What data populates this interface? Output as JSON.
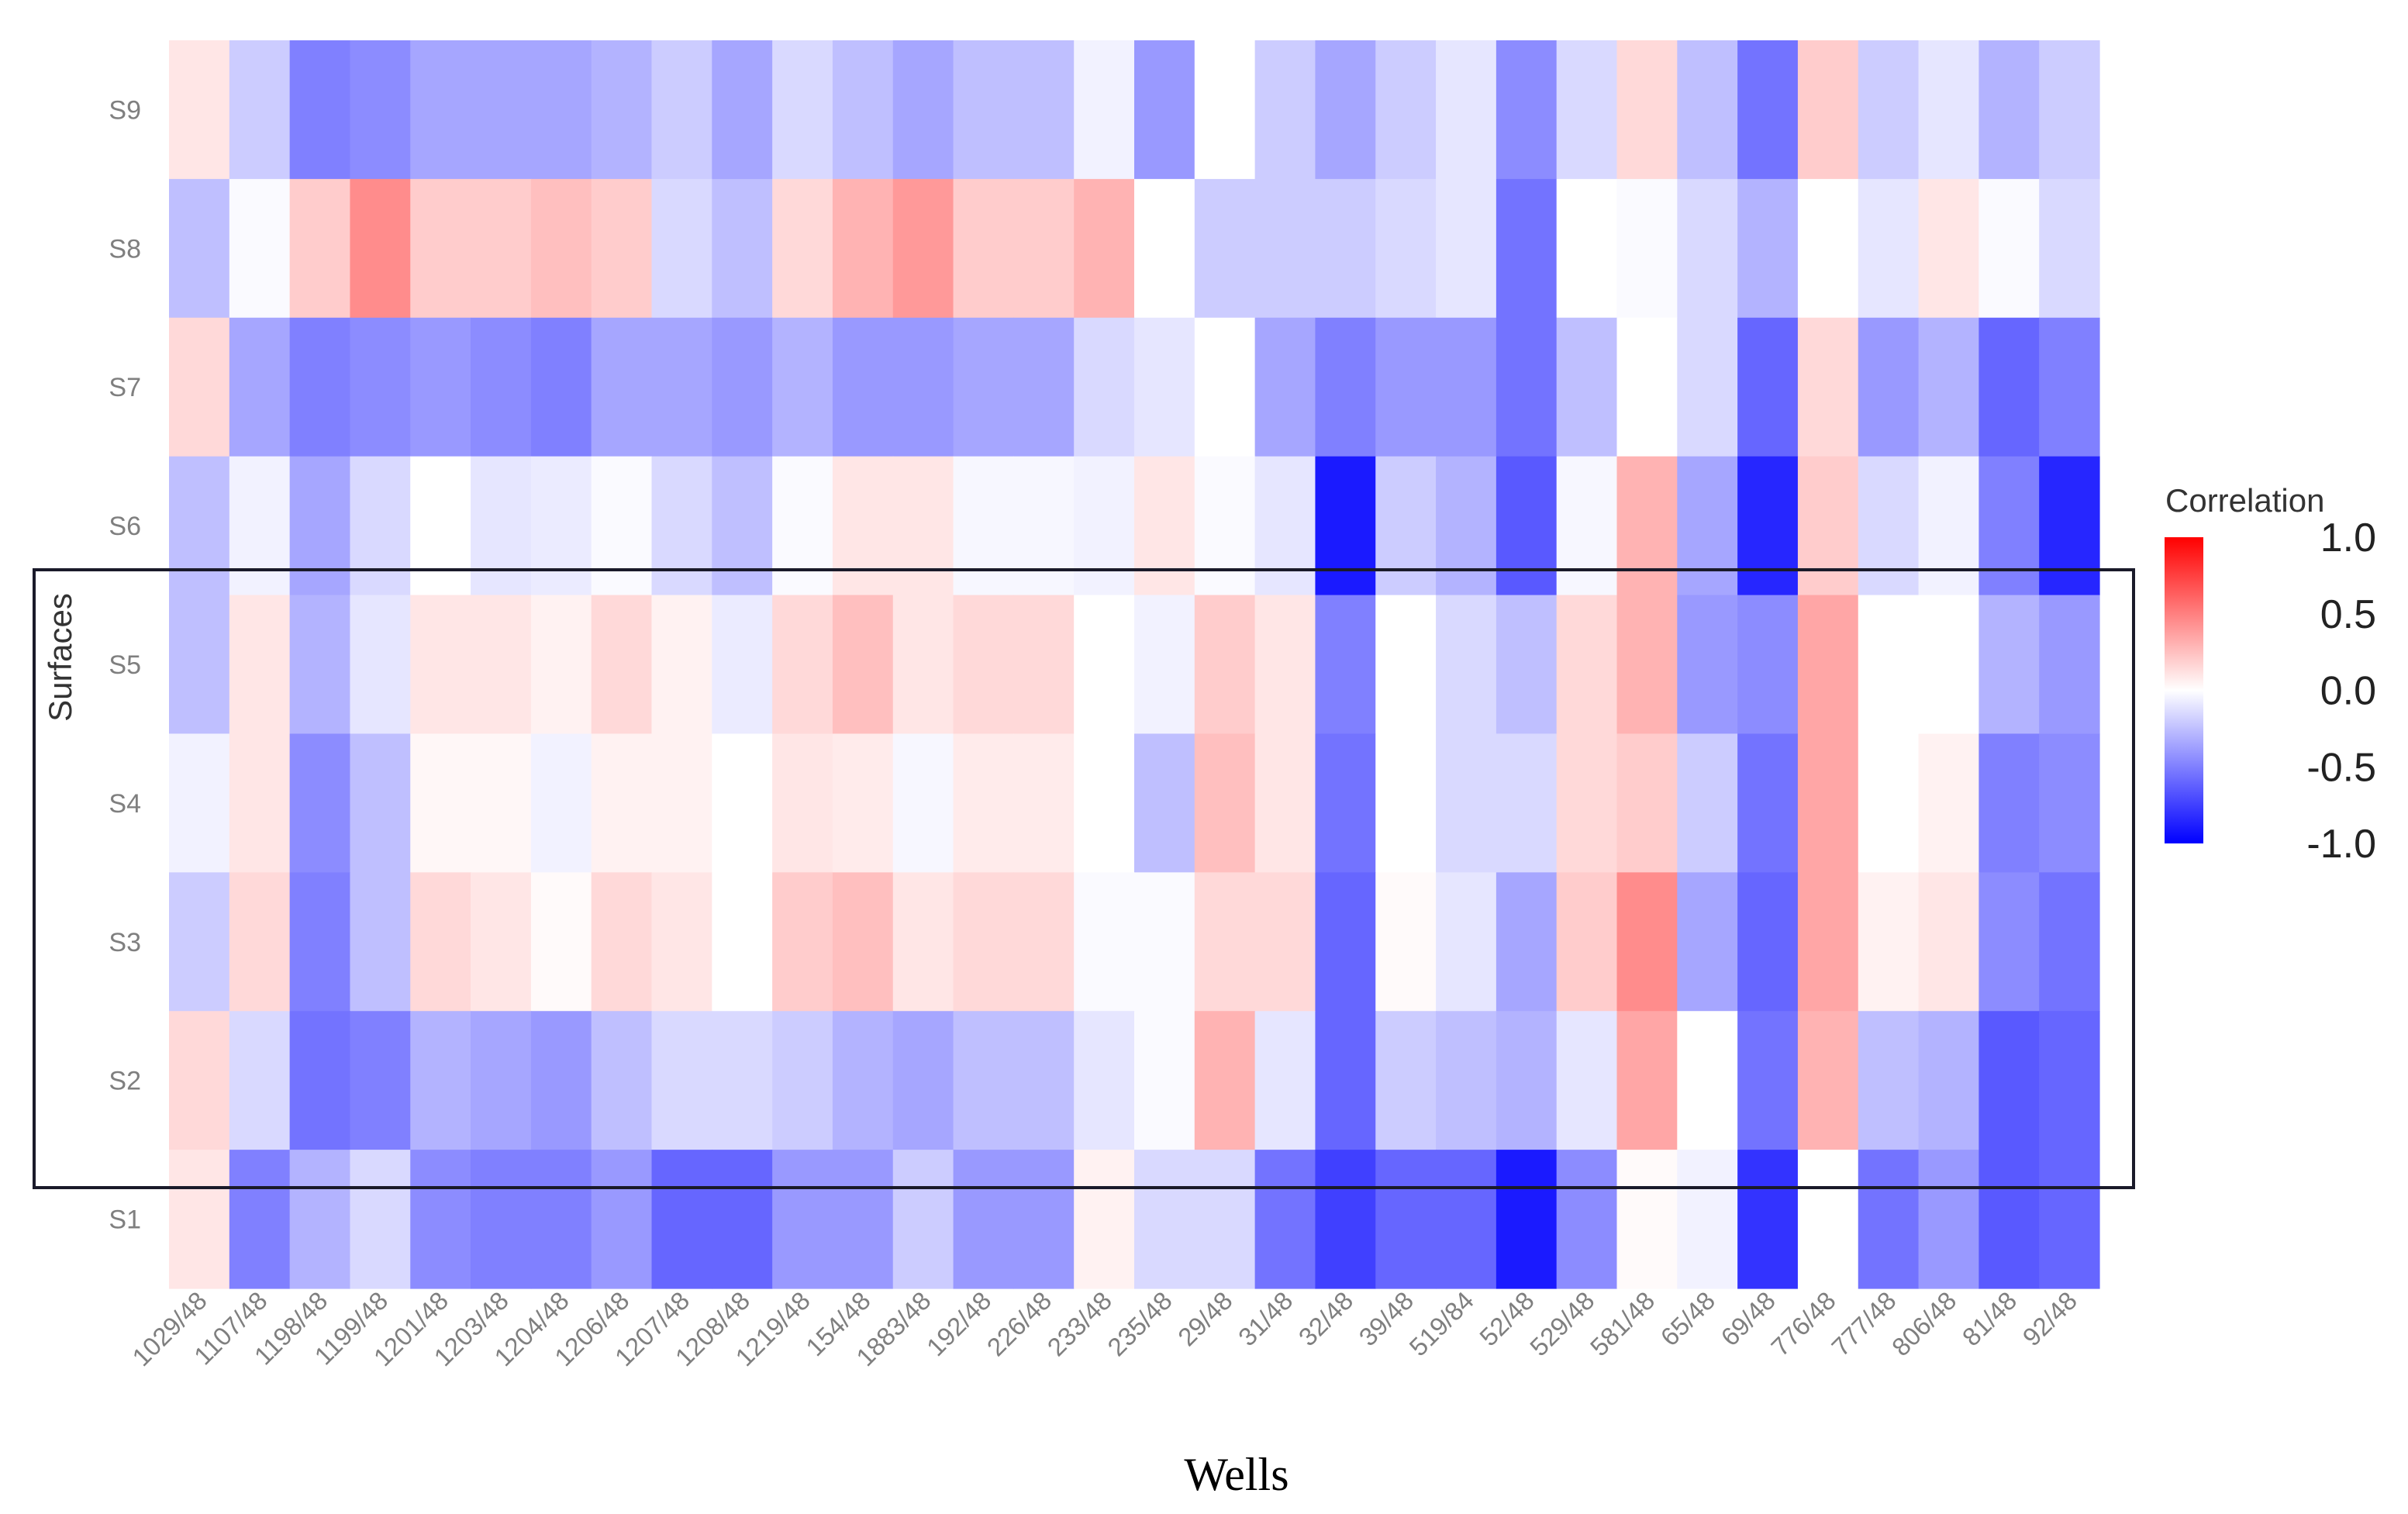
{
  "chart_data": {
    "type": "heatmap",
    "title": "",
    "xlabel": "Wells",
    "ylabel": "Surfaces",
    "x": [
      "1029/48",
      "1107/48",
      "1198/48",
      "1199/48",
      "1201/48",
      "1203/48",
      "1204/48",
      "1206/48",
      "1207/48",
      "1208/48",
      "1219/48",
      "154/48",
      "1883/48",
      "192/48",
      "226/48",
      "233/48",
      "235/48",
      "29/48",
      "31/48",
      "32/48",
      "39/48",
      "519/84",
      "52/48",
      "529/48",
      "581/48",
      "65/48",
      "69/48",
      "776/48",
      "777/48",
      "806/48",
      "81/48",
      "92/48"
    ],
    "y": [
      "S9",
      "S8",
      "S7",
      "S6",
      "S5",
      "S4",
      "S3",
      "S2",
      "S1"
    ],
    "values": [
      [
        0.1,
        -0.2,
        -0.5,
        -0.45,
        -0.35,
        -0.35,
        -0.35,
        -0.3,
        -0.2,
        -0.35,
        -0.15,
        -0.25,
        -0.35,
        -0.25,
        -0.25,
        -0.05,
        -0.4,
        0.0,
        -0.2,
        -0.35,
        -0.2,
        -0.1,
        -0.45,
        -0.15,
        0.15,
        -0.25,
        -0.55,
        0.2,
        -0.2,
        -0.1,
        -0.3,
        -0.2
      ],
      [
        -0.25,
        -0.02,
        0.2,
        0.45,
        0.2,
        0.2,
        0.25,
        0.2,
        -0.15,
        -0.25,
        0.15,
        0.3,
        0.4,
        0.2,
        0.2,
        0.3,
        0.0,
        -0.2,
        -0.2,
        -0.2,
        -0.15,
        -0.1,
        -0.55,
        0.0,
        -0.02,
        -0.15,
        -0.3,
        0.0,
        -0.1,
        0.1,
        -0.02,
        -0.15
      ],
      [
        0.15,
        -0.35,
        -0.5,
        -0.45,
        -0.4,
        -0.45,
        -0.5,
        -0.35,
        -0.35,
        -0.4,
        -0.3,
        -0.4,
        -0.4,
        -0.35,
        -0.35,
        -0.15,
        -0.1,
        0.0,
        -0.35,
        -0.5,
        -0.4,
        -0.4,
        -0.55,
        -0.25,
        0.0,
        -0.15,
        -0.6,
        0.15,
        -0.4,
        -0.3,
        -0.6,
        -0.5
      ],
      [
        -0.25,
        -0.05,
        -0.35,
        -0.15,
        0.0,
        -0.1,
        -0.08,
        -0.02,
        -0.15,
        -0.25,
        -0.02,
        0.1,
        0.1,
        -0.03,
        -0.03,
        -0.05,
        0.1,
        -0.02,
        -0.1,
        -0.9,
        -0.2,
        -0.3,
        -0.65,
        -0.03,
        0.3,
        -0.35,
        -0.85,
        0.2,
        -0.15,
        -0.05,
        -0.5,
        -0.85
      ],
      [
        -0.25,
        0.1,
        -0.3,
        -0.1,
        0.1,
        0.1,
        0.05,
        0.15,
        0.05,
        -0.08,
        0.15,
        0.25,
        0.1,
        0.15,
        0.15,
        0.0,
        -0.05,
        0.2,
        0.1,
        -0.5,
        0.0,
        -0.15,
        -0.25,
        0.15,
        0.3,
        -0.4,
        -0.45,
        0.35,
        0.0,
        0.0,
        -0.3,
        -0.4
      ],
      [
        -0.05,
        0.1,
        -0.45,
        -0.25,
        0.03,
        0.03,
        -0.05,
        0.05,
        0.05,
        0.0,
        0.1,
        0.08,
        -0.03,
        0.08,
        0.08,
        0.0,
        -0.25,
        0.25,
        0.1,
        -0.55,
        0.0,
        -0.15,
        -0.15,
        0.15,
        0.2,
        -0.2,
        -0.55,
        0.35,
        0.0,
        0.05,
        -0.5,
        -0.45
      ],
      [
        -0.2,
        0.15,
        -0.5,
        -0.25,
        0.15,
        0.1,
        0.02,
        0.15,
        0.1,
        0.0,
        0.2,
        0.25,
        0.1,
        0.15,
        0.15,
        -0.02,
        -0.02,
        0.15,
        0.15,
        -0.6,
        0.02,
        -0.1,
        -0.35,
        0.2,
        0.45,
        -0.35,
        -0.6,
        0.35,
        0.05,
        0.1,
        -0.45,
        -0.55
      ],
      [
        0.15,
        -0.15,
        -0.55,
        -0.5,
        -0.3,
        -0.35,
        -0.4,
        -0.25,
        -0.15,
        -0.15,
        -0.2,
        -0.3,
        -0.35,
        -0.25,
        -0.25,
        -0.1,
        -0.02,
        0.3,
        -0.1,
        -0.6,
        -0.2,
        -0.25,
        -0.3,
        -0.1,
        0.35,
        0.0,
        -0.55,
        0.3,
        -0.25,
        -0.3,
        -0.65,
        -0.6
      ],
      [
        0.1,
        -0.5,
        -0.3,
        -0.15,
        -0.45,
        -0.5,
        -0.5,
        -0.4,
        -0.6,
        -0.6,
        -0.4,
        -0.4,
        -0.2,
        -0.4,
        -0.4,
        0.05,
        -0.15,
        -0.15,
        -0.55,
        -0.75,
        -0.6,
        -0.6,
        -0.9,
        -0.45,
        0.02,
        -0.05,
        -0.8,
        0.0,
        -0.55,
        -0.4,
        -0.65,
        -0.6
      ]
    ],
    "scale": {
      "low": "#0000ff",
      "mid": "#ffffff",
      "high": "#ff0000",
      "range": [
        -1,
        1
      ]
    },
    "legend": {
      "title": "Correlation",
      "ticks": [
        "1.0",
        "0.5",
        "0.0",
        "-0.5",
        "-1.0"
      ],
      "position": "right"
    },
    "highlight_rows": [
      "S5",
      "S4",
      "S3",
      "S2"
    ]
  }
}
